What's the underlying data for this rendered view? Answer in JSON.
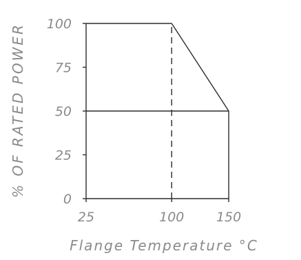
{
  "chart_data": {
    "type": "line",
    "title": "",
    "xlabel": "Flange Temperature °C",
    "ylabel": "% OF RATED POWER",
    "xlim": [
      25,
      155
    ],
    "ylim": [
      0,
      100
    ],
    "x_ticks": [
      "25",
      "100",
      "150"
    ],
    "y_ticks": [
      "0",
      "25",
      "50",
      "75",
      "100"
    ],
    "series": [
      {
        "x": [
          25,
          100,
          150
        ],
        "y": [
          100,
          100,
          50
        ]
      }
    ],
    "reference_lines": [
      {
        "orientation": "vertical",
        "x": 100,
        "style": "dashed",
        "from_y": 0,
        "to_y": 100
      },
      {
        "orientation": "vertical",
        "x": 150,
        "style": "solid",
        "from_y": 0,
        "to_y": 50
      },
      {
        "orientation": "horizontal",
        "y": 50,
        "style": "solid",
        "from_x": 25,
        "to_x": 150
      }
    ],
    "grid": false,
    "legend": "none"
  }
}
